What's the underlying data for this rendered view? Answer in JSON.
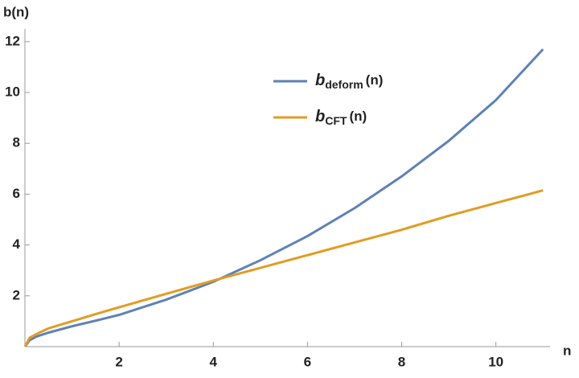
{
  "chart_data": {
    "type": "line",
    "x_label": "n",
    "y_label": "b(n)",
    "x": [
      0,
      0.1,
      0.25,
      0.5,
      1,
      1.5,
      2,
      3,
      4,
      5,
      6,
      7,
      8,
      9,
      10,
      11
    ],
    "series": [
      {
        "name": "b",
        "subscript": "deform",
        "suffix": "(n)",
        "color": "#5e81b5",
        "values": [
          0,
          0.25,
          0.4,
          0.55,
          0.8,
          1.02,
          1.25,
          1.85,
          2.55,
          3.4,
          4.35,
          5.45,
          6.7,
          8.1,
          9.7,
          11.7
        ]
      },
      {
        "name": "b",
        "subscript": "CFT",
        "suffix": "(n)",
        "color": "#e19c24",
        "values": [
          0,
          0.35,
          0.5,
          0.72,
          1.0,
          1.28,
          1.55,
          2.08,
          2.6,
          3.1,
          3.6,
          4.1,
          4.6,
          5.15,
          5.65,
          6.15
        ]
      }
    ],
    "xlim": [
      0,
      11.15
    ],
    "ylim": [
      0,
      12.5
    ],
    "xticks": [
      2,
      4,
      6,
      8,
      10
    ],
    "yticks": [
      2,
      4,
      6,
      8,
      10,
      12
    ]
  }
}
